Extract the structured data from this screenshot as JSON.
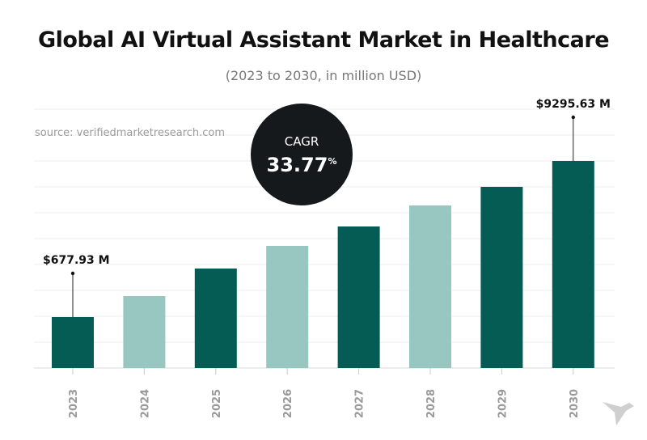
{
  "chart_data": {
    "type": "bar",
    "title": "Global AI Virtual Assistant Market in Healthcare",
    "subtitle": "(2023 to 2030, in million USD)",
    "source": "source: verifiedmarketresearch.com",
    "categories": [
      "2023",
      "2024",
      "2025",
      "2026",
      "2027",
      "2028",
      "2029",
      "2030"
    ],
    "values": [
      677.93,
      null,
      null,
      null,
      null,
      null,
      null,
      9295.63
    ],
    "data_labels": {
      "2023": "$677.93 M",
      "2030": "$9295.63 M"
    },
    "cagr": {
      "label": "CAGR",
      "value": "33.77",
      "unit": "%"
    },
    "colors": {
      "dark": "#045c55",
      "light": "#98c6c1"
    },
    "bar_color_pattern": [
      "dark",
      "light",
      "dark",
      "light",
      "dark",
      "light",
      "dark",
      "dark"
    ],
    "grid": true,
    "y_axis_labels": false,
    "xlabel": "",
    "ylabel": ""
  }
}
